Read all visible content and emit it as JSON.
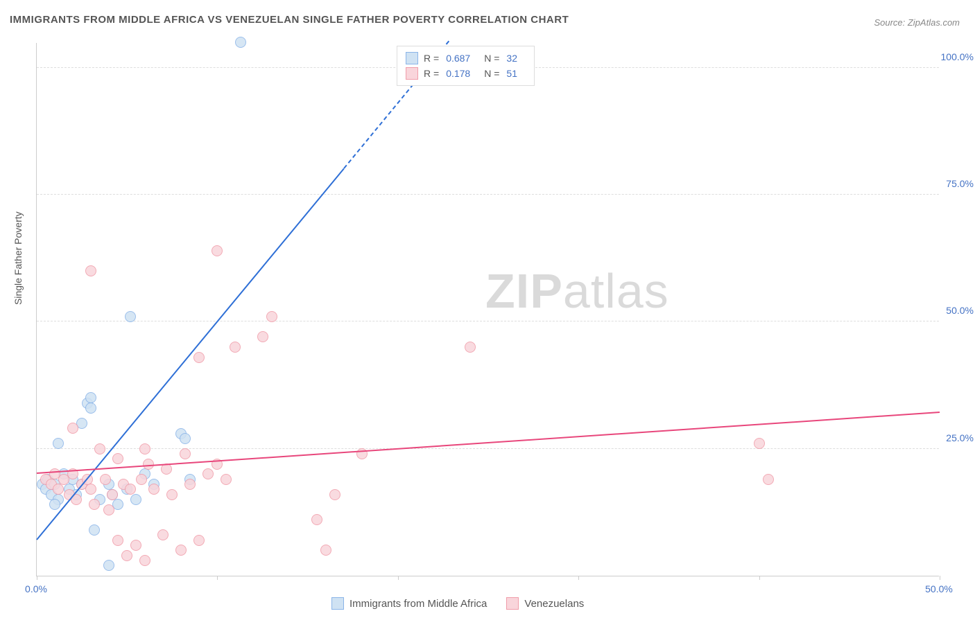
{
  "title": "IMMIGRANTS FROM MIDDLE AFRICA VS VENEZUELAN SINGLE FATHER POVERTY CORRELATION CHART",
  "source": "Source: ZipAtlas.com",
  "y_axis_label": "Single Father Poverty",
  "watermark_bold": "ZIP",
  "watermark_rest": "atlas",
  "chart": {
    "type": "scatter",
    "x_min": 0,
    "x_max": 50,
    "y_min": 0,
    "y_max": 105,
    "x_ticks": [
      0,
      10,
      20,
      30,
      40,
      50
    ],
    "x_tick_labels": {
      "0": "0.0%",
      "50": "50.0%"
    },
    "y_ticks": [
      25,
      50,
      75,
      100
    ],
    "y_tick_labels": {
      "25": "25.0%",
      "50": "50.0%",
      "75": "75.0%",
      "100": "100.0%"
    },
    "background_color": "#ffffff",
    "grid_color": "#dddddd",
    "point_radius": 8,
    "series": [
      {
        "name": "Immigrants from Middle Africa",
        "color_fill": "#cfe2f3",
        "color_stroke": "#8ab4e8",
        "trend_color": "#2e6fd6",
        "R": "0.687",
        "N": "32",
        "trend_start": {
          "x": 0,
          "y": 7
        },
        "trend_solid_end": {
          "x": 17,
          "y": 80
        },
        "trend_dash_end": {
          "x": 22.8,
          "y": 105
        },
        "points": [
          {
            "x": 0.3,
            "y": 18
          },
          {
            "x": 0.5,
            "y": 17
          },
          {
            "x": 0.6,
            "y": 19
          },
          {
            "x": 0.8,
            "y": 16
          },
          {
            "x": 1.0,
            "y": 18
          },
          {
            "x": 1.2,
            "y": 15
          },
          {
            "x": 1.5,
            "y": 20
          },
          {
            "x": 1.2,
            "y": 26
          },
          {
            "x": 1.0,
            "y": 14
          },
          {
            "x": 1.8,
            "y": 17
          },
          {
            "x": 2.0,
            "y": 19
          },
          {
            "x": 2.2,
            "y": 16
          },
          {
            "x": 2.5,
            "y": 18
          },
          {
            "x": 2.8,
            "y": 34
          },
          {
            "x": 3.0,
            "y": 35
          },
          {
            "x": 3.0,
            "y": 33
          },
          {
            "x": 2.5,
            "y": 30
          },
          {
            "x": 3.2,
            "y": 9
          },
          {
            "x": 3.5,
            "y": 15
          },
          {
            "x": 4.0,
            "y": 18
          },
          {
            "x": 4.2,
            "y": 16
          },
          {
            "x": 4.5,
            "y": 14
          },
          {
            "x": 4.0,
            "y": 2
          },
          {
            "x": 5.0,
            "y": 17
          },
          {
            "x": 5.5,
            "y": 15
          },
          {
            "x": 5.2,
            "y": 51
          },
          {
            "x": 6.0,
            "y": 20
          },
          {
            "x": 6.5,
            "y": 18
          },
          {
            "x": 8.0,
            "y": 28
          },
          {
            "x": 8.2,
            "y": 27
          },
          {
            "x": 8.5,
            "y": 19
          },
          {
            "x": 11.3,
            "y": 105
          }
        ]
      },
      {
        "name": "Venezuelans",
        "color_fill": "#f9d5db",
        "color_stroke": "#f09ca9",
        "trend_color": "#e8467b",
        "R": "0.178",
        "N": "51",
        "trend_start": {
          "x": 0,
          "y": 20
        },
        "trend_solid_end": {
          "x": 50,
          "y": 32
        },
        "points": [
          {
            "x": 0.5,
            "y": 19
          },
          {
            "x": 0.8,
            "y": 18
          },
          {
            "x": 1.0,
            "y": 20
          },
          {
            "x": 1.2,
            "y": 17
          },
          {
            "x": 1.5,
            "y": 19
          },
          {
            "x": 1.8,
            "y": 16
          },
          {
            "x": 2.0,
            "y": 20
          },
          {
            "x": 2.2,
            "y": 15
          },
          {
            "x": 2.0,
            "y": 29
          },
          {
            "x": 2.5,
            "y": 18
          },
          {
            "x": 2.8,
            "y": 19
          },
          {
            "x": 3.0,
            "y": 17
          },
          {
            "x": 3.2,
            "y": 14
          },
          {
            "x": 3.5,
            "y": 25
          },
          {
            "x": 3.8,
            "y": 19
          },
          {
            "x": 3.0,
            "y": 60
          },
          {
            "x": 4.0,
            "y": 13
          },
          {
            "x": 4.2,
            "y": 16
          },
          {
            "x": 4.5,
            "y": 7
          },
          {
            "x": 4.8,
            "y": 18
          },
          {
            "x": 5.0,
            "y": 4
          },
          {
            "x": 5.2,
            "y": 17
          },
          {
            "x": 5.5,
            "y": 6
          },
          {
            "x": 5.8,
            "y": 19
          },
          {
            "x": 6.0,
            "y": 3
          },
          {
            "x": 6.2,
            "y": 22
          },
          {
            "x": 6.5,
            "y": 17
          },
          {
            "x": 6.0,
            "y": 25
          },
          {
            "x": 7.0,
            "y": 8
          },
          {
            "x": 7.2,
            "y": 21
          },
          {
            "x": 7.5,
            "y": 16
          },
          {
            "x": 8.0,
            "y": 5
          },
          {
            "x": 8.2,
            "y": 24
          },
          {
            "x": 8.5,
            "y": 18
          },
          {
            "x": 9.0,
            "y": 7
          },
          {
            "x": 9.5,
            "y": 20
          },
          {
            "x": 9.0,
            "y": 43
          },
          {
            "x": 10.0,
            "y": 22
          },
          {
            "x": 10.5,
            "y": 19
          },
          {
            "x": 10.0,
            "y": 64
          },
          {
            "x": 11.0,
            "y": 45
          },
          {
            "x": 12.5,
            "y": 47
          },
          {
            "x": 13.0,
            "y": 51
          },
          {
            "x": 15.5,
            "y": 11
          },
          {
            "x": 16.0,
            "y": 5
          },
          {
            "x": 16.5,
            "y": 16
          },
          {
            "x": 18.0,
            "y": 24
          },
          {
            "x": 24.0,
            "y": 45
          },
          {
            "x": 40.0,
            "y": 26
          },
          {
            "x": 40.5,
            "y": 19
          },
          {
            "x": 4.5,
            "y": 23
          }
        ]
      }
    ]
  },
  "legend_bottom": [
    {
      "label": "Immigrants from Middle Africa",
      "fill": "#cfe2f3",
      "stroke": "#8ab4e8"
    },
    {
      "label": "Venezuelans",
      "fill": "#f9d5db",
      "stroke": "#f09ca9"
    }
  ]
}
